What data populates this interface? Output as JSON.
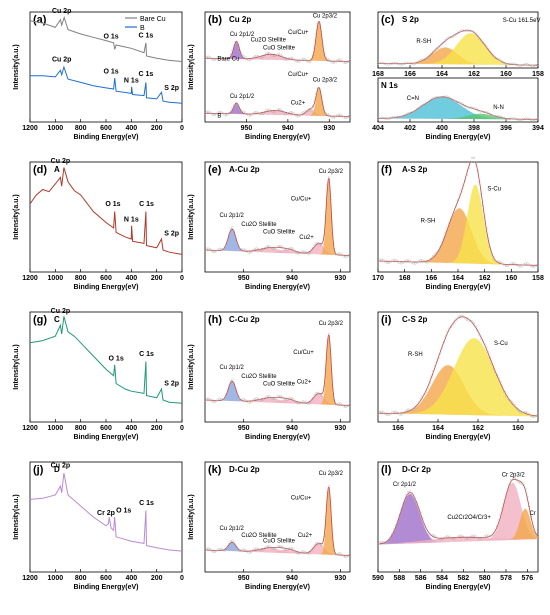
{
  "colors": {
    "bare_cu": "#808080",
    "b": "#1e6fd0",
    "a": "#b0392b",
    "c": "#1f9a78",
    "d": "#b98ad6",
    "peak_orange": "#f2a64a",
    "peak_yellow": "#f7e24a",
    "peak_purple": "#9d6fc9",
    "peak_blue": "#8aa6e0",
    "peak_pink": "#f1b0c0",
    "peak_cyan": "#4cc0d8",
    "peak_green": "#58c46b"
  },
  "chart_data": [
    {
      "id": "a",
      "type": "line",
      "panel_label": "(a)",
      "title": "",
      "xlabel": "Binding Energy(eV)",
      "ylabel": "Intensity(a.u.)",
      "xlim": [
        1200,
        0
      ],
      "xticks": [
        1200,
        1000,
        800,
        600,
        400,
        200,
        0
      ],
      "reversed": true,
      "legend": {
        "position": "top-right",
        "entries": [
          "Bare Cu",
          "B"
        ]
      },
      "series": [
        {
          "name": "Bare Cu",
          "color_key": "bare_cu",
          "points": [
            [
              1200,
              0.92
            ],
            [
              1100,
              0.9
            ],
            [
              1000,
              0.86
            ],
            [
              960,
              0.93
            ],
            [
              950,
              0.88
            ],
            [
              930,
              0.95
            ],
            [
              900,
              0.84
            ],
            [
              800,
              0.8
            ],
            [
              700,
              0.77
            ],
            [
              600,
              0.74
            ],
            [
              540,
              0.72
            ],
            [
              531,
              0.66
            ],
            [
              520,
              0.7
            ],
            [
              400,
              0.67
            ],
            [
              300,
              0.63
            ],
            [
              285,
              0.72
            ],
            [
              280,
              0.6
            ],
            [
              200,
              0.58
            ],
            [
              100,
              0.56
            ],
            [
              0,
              0.55
            ]
          ]
        },
        {
          "name": "B",
          "color_key": "b",
          "points": [
            [
              1200,
              0.42
            ],
            [
              1100,
              0.42
            ],
            [
              1000,
              0.41
            ],
            [
              960,
              0.47
            ],
            [
              950,
              0.43
            ],
            [
              932,
              0.5
            ],
            [
              900,
              0.39
            ],
            [
              800,
              0.36
            ],
            [
              700,
              0.33
            ],
            [
              600,
              0.31
            ],
            [
              540,
              0.3
            ],
            [
              531,
              0.4
            ],
            [
              520,
              0.28
            ],
            [
              400,
              0.26
            ],
            [
              398,
              0.32
            ],
            [
              390,
              0.25
            ],
            [
              300,
              0.24
            ],
            [
              285,
              0.36
            ],
            [
              280,
              0.22
            ],
            [
              200,
              0.21
            ],
            [
              162,
              0.27
            ],
            [
              150,
              0.19
            ],
            [
              100,
              0.18
            ],
            [
              0,
              0.17
            ]
          ]
        }
      ],
      "annotations": [
        "Cu 2p",
        "O 1s",
        "C 1s",
        "Cu 2p",
        "O 1s",
        "N 1s",
        "C 1s",
        "S 2p"
      ]
    },
    {
      "id": "b",
      "type": "line",
      "panel_label": "(b)",
      "title": "Cu 2p",
      "xlabel": "Binding Energy(eV)",
      "ylabel": "Intensity(a.u.)",
      "xlim": [
        960,
        925
      ],
      "xticks": [
        950,
        940,
        930
      ],
      "reversed": true,
      "annotations": [
        "Cu 2p1/2",
        "Cu2O Stellite",
        "CuO Stellite",
        "Cu/Cu+",
        "Cu 2p3/2",
        "Bare Cu",
        "Cu 2p1/2",
        "Cu/Cu+",
        "Cu2+",
        "Cu 2p3/2",
        "B"
      ]
    },
    {
      "id": "c",
      "type": "line",
      "panel_label": "(c)",
      "title": "S 2p",
      "xlabel": "Binding Energy(eV)",
      "ylabel": "",
      "xlim": [
        168,
        158
      ],
      "xticks": [
        168,
        166,
        164,
        162,
        160,
        158
      ],
      "reversed": true,
      "annotations": [
        "R-SH",
        "S-Cu 161.5eV"
      ]
    },
    {
      "id": "c2",
      "type": "line",
      "panel_label": "",
      "title": "N 1s",
      "xlabel": "Binding Energy(eV)",
      "ylabel": "",
      "xlim": [
        404,
        394
      ],
      "xticks": [
        404,
        402,
        400,
        398,
        396,
        394
      ],
      "reversed": true,
      "annotations": [
        "C=N",
        "N-N"
      ]
    },
    {
      "id": "d",
      "type": "line",
      "panel_label": "(d)",
      "title": "A",
      "xlabel": "Binding Energy(eV)",
      "ylabel": "Intensity(a.u.)",
      "xlim": [
        1200,
        0
      ],
      "xticks": [
        1200,
        1000,
        800,
        600,
        400,
        200,
        0
      ],
      "reversed": true,
      "series": [
        {
          "name": "A",
          "color_key": "a",
          "points": [
            [
              1200,
              0.62
            ],
            [
              1150,
              0.7
            ],
            [
              1100,
              0.75
            ],
            [
              1050,
              0.73
            ],
            [
              1000,
              0.8
            ],
            [
              960,
              0.86
            ],
            [
              950,
              0.78
            ],
            [
              932,
              0.95
            ],
            [
              900,
              0.82
            ],
            [
              850,
              0.74
            ],
            [
              800,
              0.7
            ],
            [
              700,
              0.55
            ],
            [
              600,
              0.45
            ],
            [
              540,
              0.4
            ],
            [
              531,
              0.55
            ],
            [
              520,
              0.36
            ],
            [
              450,
              0.32
            ],
            [
              400,
              0.3
            ],
            [
              398,
              0.42
            ],
            [
              390,
              0.28
            ],
            [
              300,
              0.26
            ],
            [
              285,
              0.55
            ],
            [
              280,
              0.24
            ],
            [
              200,
              0.22
            ],
            [
              162,
              0.3
            ],
            [
              150,
              0.2
            ],
            [
              100,
              0.18
            ],
            [
              0,
              0.16
            ]
          ]
        }
      ],
      "annotations": [
        "Cu 2p",
        "O 1s",
        "N 1s",
        "C 1s",
        "S 2p"
      ]
    },
    {
      "id": "e",
      "type": "line",
      "panel_label": "(e)",
      "title": "A-Cu 2p",
      "xlabel": "Binding Energy(eV)",
      "ylabel": "Intensity(a.u.)",
      "xlim": [
        958,
        928
      ],
      "xticks": [
        950,
        940,
        930
      ],
      "reversed": true,
      "annotations": [
        "Cu 2p1/2",
        "Cu2O Stellite",
        "CuO Stellite",
        "Cu/Cu+",
        "Cu 2p3/2",
        "Cu2+"
      ]
    },
    {
      "id": "f",
      "type": "line",
      "panel_label": "(f)",
      "title": "A-S 2p",
      "xlabel": "Binding Energy(eV)",
      "ylabel": "",
      "xlim": [
        170,
        158
      ],
      "xticks": [
        170,
        168,
        166,
        164,
        162,
        160,
        158
      ],
      "reversed": true,
      "annotations": [
        "R-SH",
        "S-Cu"
      ]
    },
    {
      "id": "g",
      "type": "line",
      "panel_label": "(g)",
      "title": "C",
      "xlabel": "Binding Energy(eV)",
      "ylabel": "Intensity(a.u.)",
      "xlim": [
        1200,
        0
      ],
      "xticks": [
        1200,
        1000,
        800,
        600,
        400,
        200,
        0
      ],
      "reversed": true,
      "series": [
        {
          "name": "C",
          "color_key": "c",
          "points": [
            [
              1200,
              0.72
            ],
            [
              1100,
              0.74
            ],
            [
              1000,
              0.78
            ],
            [
              960,
              0.88
            ],
            [
              950,
              0.8
            ],
            [
              932,
              0.96
            ],
            [
              900,
              0.82
            ],
            [
              850,
              0.78
            ],
            [
              800,
              0.72
            ],
            [
              700,
              0.6
            ],
            [
              600,
              0.48
            ],
            [
              540,
              0.42
            ],
            [
              531,
              0.52
            ],
            [
              520,
              0.35
            ],
            [
              450,
              0.3
            ],
            [
              400,
              0.28
            ],
            [
              300,
              0.26
            ],
            [
              285,
              0.55
            ],
            [
              280,
              0.24
            ],
            [
              200,
              0.22
            ],
            [
              162,
              0.3
            ],
            [
              150,
              0.2
            ],
            [
              100,
              0.18
            ],
            [
              0,
              0.17
            ]
          ]
        }
      ],
      "annotations": [
        "Cu 2p",
        "O 1s",
        "C 1s",
        "S 2p"
      ]
    },
    {
      "id": "h",
      "type": "line",
      "panel_label": "(h)",
      "title": "C-Cu 2p",
      "xlabel": "Binding Energy(eV)",
      "ylabel": "Intensity(a.u.)",
      "xlim": [
        958,
        928
      ],
      "xticks": [
        950,
        940,
        930
      ],
      "reversed": true,
      "annotations": [
        "Cu 2p1/2",
        "Cu2O Stellite",
        "CuO Stellite",
        "Cu2+",
        "Cu/Cu+",
        "Cu 2p3/2"
      ]
    },
    {
      "id": "i",
      "type": "line",
      "panel_label": "(i)",
      "title": "C-S 2p",
      "xlabel": "Binding Energy(eV)",
      "ylabel": "",
      "xlim": [
        167,
        159
      ],
      "xticks": [
        166,
        164,
        162,
        160
      ],
      "reversed": true,
      "annotations": [
        "R-SH",
        "S-Cu"
      ]
    },
    {
      "id": "j",
      "type": "line",
      "panel_label": "(j)",
      "title": "D",
      "xlabel": "Binding Energy(eV)",
      "ylabel": "Intensity(a.u.)",
      "xlim": [
        1200,
        0
      ],
      "xticks": [
        1200,
        1000,
        800,
        600,
        400,
        200,
        0
      ],
      "reversed": true,
      "series": [
        {
          "name": "D",
          "color_key": "d",
          "points": [
            [
              1200,
              0.66
            ],
            [
              1100,
              0.67
            ],
            [
              1000,
              0.7
            ],
            [
              960,
              0.78
            ],
            [
              950,
              0.72
            ],
            [
              932,
              0.9
            ],
            [
              900,
              0.7
            ],
            [
              800,
              0.6
            ],
            [
              700,
              0.5
            ],
            [
              600,
              0.42
            ],
            [
              580,
              0.44
            ],
            [
              575,
              0.5
            ],
            [
              560,
              0.4
            ],
            [
              540,
              0.38
            ],
            [
              531,
              0.5
            ],
            [
              520,
              0.32
            ],
            [
              400,
              0.28
            ],
            [
              300,
              0.26
            ],
            [
              285,
              0.56
            ],
            [
              280,
              0.24
            ],
            [
              200,
              0.22
            ],
            [
              100,
              0.2
            ],
            [
              0,
              0.19
            ]
          ]
        }
      ],
      "annotations": [
        "Cu 2p",
        "Cr 2p",
        "O 1s",
        "C 1s"
      ]
    },
    {
      "id": "k",
      "type": "line",
      "panel_label": "(k)",
      "title": "D-Cu 2p",
      "xlabel": "Binding Energy(eV)",
      "ylabel": "Intensity(a.u.)",
      "xlim": [
        958,
        928
      ],
      "xticks": [
        950,
        940,
        930
      ],
      "reversed": true,
      "annotations": [
        "Cu 2p1/2",
        "Cu2O Stellite",
        "CuO Stellite",
        "Cu/Cu+",
        "Cu 2p3/2",
        "Cu2+"
      ]
    },
    {
      "id": "l",
      "type": "line",
      "panel_label": "(l)",
      "title": "D-Cr 2p",
      "xlabel": "Binding Energy(eV)",
      "ylabel": "",
      "xlim": [
        590,
        575
      ],
      "xticks": [
        590,
        588,
        586,
        584,
        582,
        580,
        578,
        576
      ],
      "reversed": true,
      "annotations": [
        "Cr 2p1/2",
        "Cu2Cr2O4/Cr3+",
        "Cr 2p3/2",
        "Cr"
      ]
    }
  ]
}
